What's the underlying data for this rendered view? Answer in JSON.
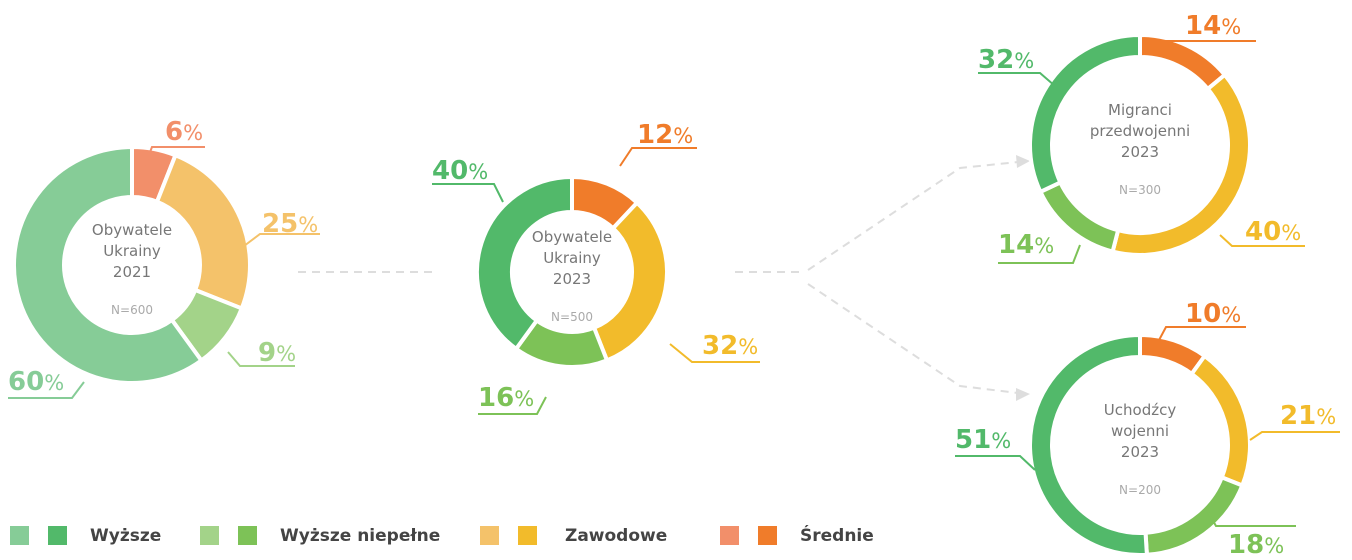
{
  "chart_data": [
    {
      "type": "pie",
      "title": [
        "Obywatele",
        "Ukrainy",
        "2021"
      ],
      "note": "N=600",
      "unit": "%",
      "values": [
        6,
        25,
        9,
        60
      ],
      "colors": [
        "#f28f6a",
        "#f4c26a",
        "#a3d389",
        "#86cc97"
      ]
    },
    {
      "type": "pie",
      "title": [
        "Obywatele",
        "Ukrainy",
        "2023"
      ],
      "note": "N=500",
      "unit": "%",
      "values": [
        12,
        32,
        16,
        40
      ],
      "colors": [
        "#f07c2a",
        "#f2bb2b",
        "#7dc257",
        "#52b96a"
      ]
    },
    {
      "type": "pie",
      "title": [
        "Migranci",
        "przedwojenni",
        "2023"
      ],
      "note": "N=300",
      "unit": "%",
      "values": [
        14,
        40,
        14,
        32
      ],
      "colors": [
        "#f07c2a",
        "#f2bb2b",
        "#7dc257",
        "#52b96a"
      ]
    },
    {
      "type": "pie",
      "title": [
        "Uchodźcy",
        "wojenni",
        "2023"
      ],
      "note": "N=200",
      "unit": "%",
      "values": [
        10,
        21,
        18,
        51
      ],
      "colors": [
        "#f07c2a",
        "#f2bb2b",
        "#7dc257",
        "#52b96a"
      ]
    }
  ],
  "legend": [
    {
      "name": "Wyższe",
      "colors": [
        "#86cc97",
        "#52b96a"
      ]
    },
    {
      "name": "Wyższe niepełne",
      "colors": [
        "#a3d389",
        "#7dc257"
      ]
    },
    {
      "name": "Zawodowe",
      "colors": [
        "#f4c26a",
        "#f2bb2b"
      ]
    },
    {
      "name": "Średnie",
      "colors": [
        "#f28f6a",
        "#f07c2a"
      ]
    }
  ]
}
